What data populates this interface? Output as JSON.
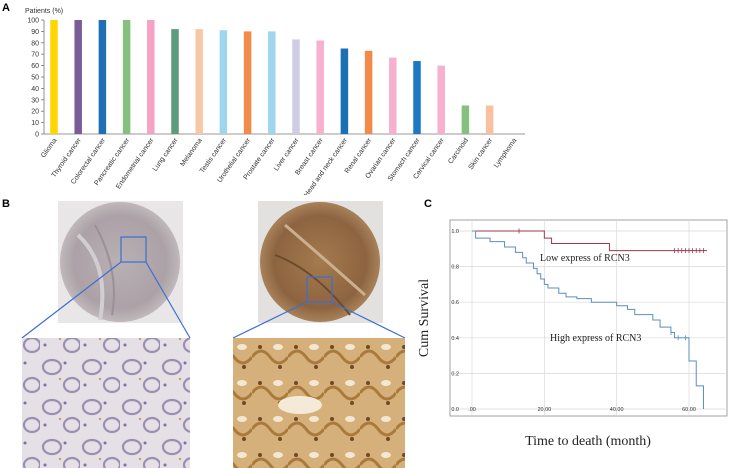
{
  "figure": {
    "panel_a_label": "A",
    "panel_b_label": "B",
    "panel_c_label": "C"
  },
  "chart_data": [
    {
      "id": "panel-a",
      "type": "bar",
      "title": "",
      "ylabel": "Patients (%)",
      "xlabel": "",
      "ylim": [
        0,
        100
      ],
      "yticks": [
        0,
        10,
        20,
        30,
        40,
        50,
        60,
        70,
        80,
        90,
        100
      ],
      "grid": false,
      "categories": [
        "Glioma",
        "Thyroid cancer",
        "Colorectal cancer",
        "Pancreatic cancer",
        "Endometrial cancer",
        "Lung cancer",
        "Melanoma",
        "Testis cancer",
        "Urothelial cancer",
        "Prostate cancer",
        "Liver cancer",
        "Breast cancer",
        "Head and neck cancer",
        "Renal cancer",
        "Ovarian cancer",
        "Stomach cancer",
        "Cervical cancer",
        "Carcinoid",
        "Skin cancer",
        "Lymphoma"
      ],
      "values": [
        100,
        100,
        100,
        100,
        100,
        92,
        92,
        91,
        90,
        90,
        83,
        82,
        75,
        73,
        67,
        64,
        60,
        25,
        25,
        0
      ],
      "colors": [
        "#ffd600",
        "#7a5c99",
        "#1f6fb5",
        "#86c07e",
        "#f7a1c4",
        "#5a9c7c",
        "#f8c7a8",
        "#9fd6ee",
        "#f28b4a",
        "#9fd6ee",
        "#cfcde6",
        "#f7b1cf",
        "#1b6fb3",
        "#f28b4a",
        "#f7b1cf",
        "#1b78c4",
        "#f7b1cf",
        "#86c07e",
        "#f8c0a0",
        "#dddddd"
      ]
    },
    {
      "id": "panel-c",
      "type": "line",
      "title": "",
      "xlabel": "Time to death (month)",
      "ylabel": "Cum Survival",
      "xlim": [
        0,
        72
      ],
      "ylim": [
        0,
        1.0
      ],
      "xticks": [
        0,
        20,
        40,
        60
      ],
      "xtick_labels": [
        ".00",
        "20.00",
        "40.00",
        "60.00"
      ],
      "yticks": [
        0,
        0.2,
        0.4,
        0.6,
        0.8,
        1.0
      ],
      "ytick_labels": [
        "0.0",
        "0.2",
        "0.4",
        "0.6",
        "0.8",
        "1.0"
      ],
      "grid": true,
      "series": [
        {
          "name": "Low express of RCN3",
          "label": "Low express of RCN3",
          "color": "#9b3a4f",
          "steps": [
            [
              0,
              1.0
            ],
            [
              20,
              0.96
            ],
            [
              22,
              0.93
            ],
            [
              38,
              0.89
            ],
            [
              65,
              0.89
            ]
          ],
          "censor_x": [
            13,
            56,
            57,
            58,
            59,
            60,
            61,
            62,
            63,
            64
          ]
        },
        {
          "name": "High express of RCN3",
          "label": "High express of RCN3",
          "color": "#5b8fbf",
          "steps": [
            [
              0,
              1.0
            ],
            [
              1,
              0.96
            ],
            [
              5,
              0.94
            ],
            [
              9,
              0.91
            ],
            [
              12,
              0.88
            ],
            [
              14,
              0.85
            ],
            [
              15,
              0.82
            ],
            [
              17,
              0.79
            ],
            [
              18,
              0.76
            ],
            [
              19,
              0.73
            ],
            [
              20,
              0.7
            ],
            [
              21,
              0.68
            ],
            [
              24,
              0.65
            ],
            [
              26,
              0.63
            ],
            [
              29,
              0.62
            ],
            [
              33,
              0.6
            ],
            [
              40,
              0.58
            ],
            [
              43,
              0.56
            ],
            [
              45,
              0.53
            ],
            [
              50,
              0.5
            ],
            [
              52,
              0.46
            ],
            [
              55,
              0.43
            ],
            [
              56,
              0.4
            ],
            [
              60,
              0.27
            ],
            [
              62,
              0.13
            ],
            [
              64,
              0.0
            ]
          ],
          "censor_x": [
            55,
            57,
            59
          ]
        }
      ]
    }
  ]
}
